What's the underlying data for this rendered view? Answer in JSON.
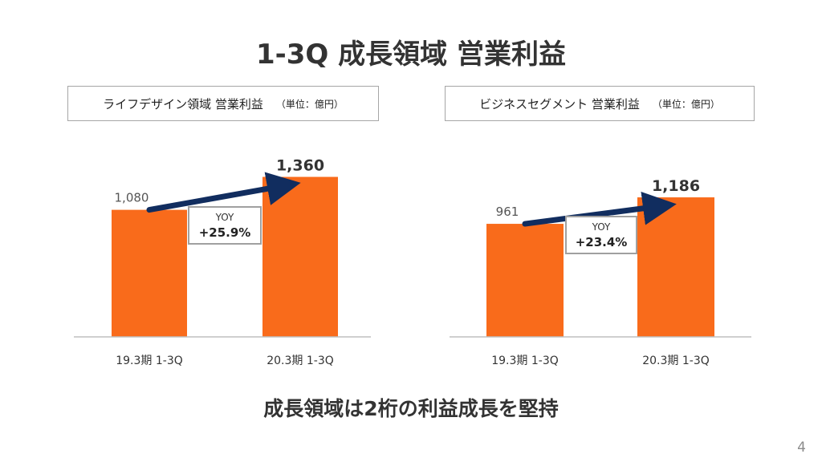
{
  "slide_title": "1-3Q 成長領域 営業利益",
  "footer_message": "成長領域は2桁の利益成長を堅持",
  "page_number": "4",
  "colors": {
    "bar": "#f96b1b",
    "arrow": "#112d5f",
    "yoy_border": "#a0a0a0",
    "axis": "#bfbfbf"
  },
  "chart_data": [
    {
      "type": "bar",
      "title": "ライフデザイン領域 営業利益",
      "unit": "（単位：億円）",
      "categories": [
        "19.3期 1-3Q",
        "20.3期 1-3Q"
      ],
      "values": [
        1080,
        1360
      ],
      "value_labels": [
        "1,080",
        "1,360"
      ],
      "yoy_label": "YOY",
      "yoy_value": "+25.9%",
      "ylim": [
        0,
        1500
      ]
    },
    {
      "type": "bar",
      "title": "ビジネスセグメント 営業利益",
      "unit": "（単位：億円）",
      "categories": [
        "19.3期 1-3Q",
        "20.3期 1-3Q"
      ],
      "values": [
        961,
        1186
      ],
      "value_labels": [
        "961",
        "1,186"
      ],
      "yoy_label": "YOY",
      "yoy_value": "+23.4%",
      "ylim": [
        0,
        1500
      ]
    }
  ]
}
